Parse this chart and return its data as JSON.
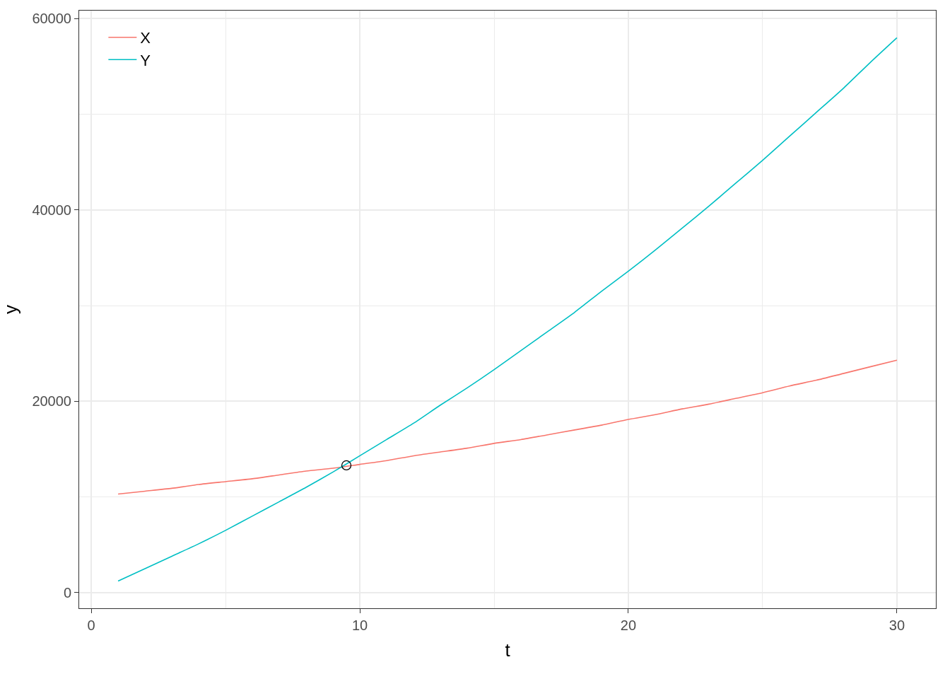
{
  "chart_data": {
    "type": "line",
    "xlabel": "t",
    "ylabel": "y",
    "x": [
      1,
      2,
      3,
      4,
      5,
      6,
      7,
      8,
      9,
      10,
      11,
      12,
      13,
      14,
      15,
      16,
      17,
      18,
      19,
      20,
      21,
      22,
      23,
      24,
      25,
      26,
      27,
      28,
      29,
      30
    ],
    "series": [
      {
        "name": "X",
        "color": "#f8766d",
        "values": [
          10300,
          10600,
          10900,
          11300,
          11600,
          11900,
          12300,
          12700,
          13000,
          13400,
          13800,
          14300,
          14700,
          15100,
          15600,
          16000,
          16500,
          17000,
          17500,
          18100,
          18600,
          19200,
          19700,
          20300,
          20900,
          21600,
          22200,
          22900,
          23600,
          24300
        ]
      },
      {
        "name": "Y",
        "color": "#00bfc4",
        "values": [
          1200,
          2500,
          3800,
          5100,
          6500,
          8000,
          9500,
          11000,
          12600,
          14300,
          16000,
          17700,
          19600,
          21400,
          23300,
          25300,
          27300,
          29300,
          31500,
          33600,
          35800,
          38100,
          40400,
          42800,
          45200,
          47700,
          50200,
          52700,
          55400,
          58000
        ]
      },
      {
        "type": "scatter",
        "color": "#000000",
        "x": [
          9.5
        ],
        "values": [
          13300
        ],
        "marker": "circle"
      }
    ],
    "xlim": [
      -0.45,
      31.45
    ],
    "ylim": [
      -1640,
      60840
    ],
    "xticks": [
      0,
      10,
      20,
      30
    ],
    "yticks": [
      0,
      20000,
      40000,
      60000
    ],
    "grid": true,
    "legend": "top left",
    "marker": "none",
    "line_style": "solid"
  }
}
